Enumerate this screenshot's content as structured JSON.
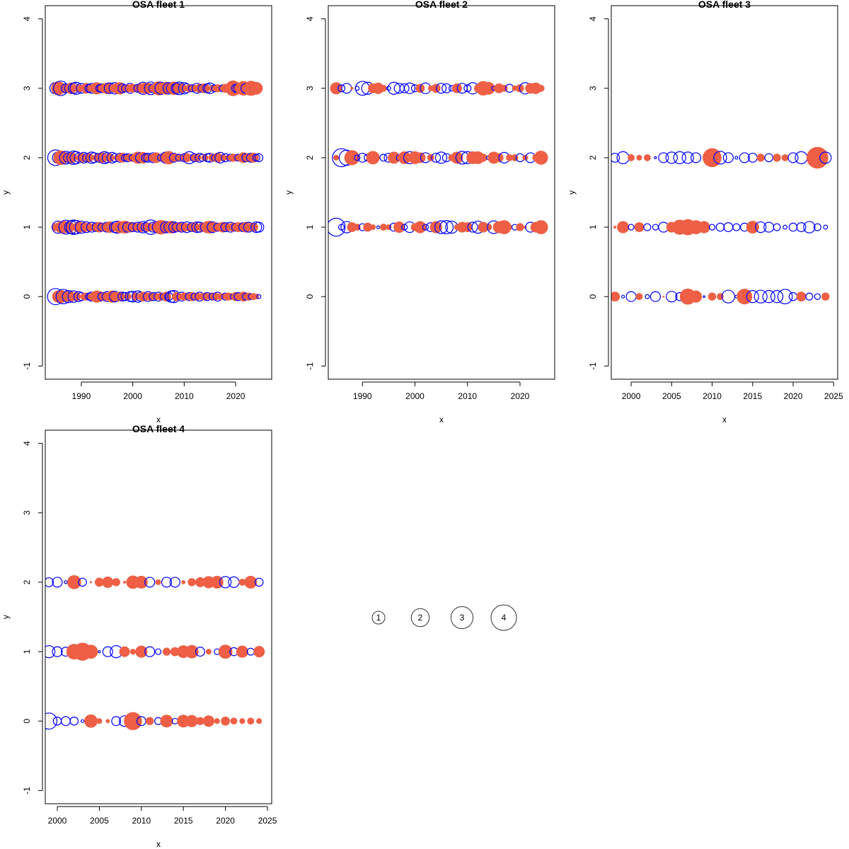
{
  "colors": {
    "positive": "#EE5F45",
    "negative": "#0000FF",
    "axis": "#000000",
    "legend": "#333333"
  },
  "chart_data": [
    {
      "type": "scatter",
      "subtype": "bubble",
      "title": "OSA fleet 1",
      "xlabel": "x",
      "ylabel": "y",
      "xlim": [
        1983,
        2027
      ],
      "ylim": [
        -1.19,
        4.19
      ],
      "xticks": [
        1990,
        2000,
        2010,
        2020
      ],
      "yticks": [
        -1,
        0,
        1,
        2,
        3,
        4
      ],
      "x": [
        1985,
        1985.5,
        1986,
        1986.5,
        1987,
        1987.5,
        1988,
        1988.5,
        1989,
        1989.5,
        1990,
        1990.5,
        1991,
        1991.5,
        1992,
        1992.5,
        1993,
        1993.5,
        1994,
        1994.5,
        1995,
        1995.5,
        1996,
        1996.5,
        1997,
        1997.5,
        1998,
        1998.5,
        1999,
        1999.5,
        2000,
        2000.5,
        2001,
        2001.5,
        2002,
        2002.5,
        2003,
        2003.5,
        2004,
        2004.5,
        2005,
        2005.5,
        2006,
        2006.5,
        2007,
        2007.5,
        2008,
        2008.5,
        2009,
        2009.5,
        2010,
        2010.5,
        2011,
        2011.5,
        2012,
        2012.5,
        2013,
        2013.5,
        2014,
        2014.5,
        2015,
        2015.5,
        2016,
        2016.5,
        2017,
        2017.5,
        2018,
        2018.5,
        2019,
        2019.5,
        2020,
        2020.5,
        2021,
        2021.5,
        2022,
        2022.5,
        2023,
        2023.5,
        2024,
        2024.5
      ],
      "rows": [
        {
          "y": 3,
          "residuals": [
            -0.8,
            1.2,
            -1.3,
            0.6,
            -0.5,
            -0.4,
            0.8,
            -0.7,
            -0.9,
            0.4,
            -0.6,
            0.3,
            0.7,
            -0.4,
            -0.6,
            0.5,
            0.9,
            -0.3,
            -0.5,
            0.6,
            0.8,
            -0.7,
            0.4,
            -0.8,
            0.7,
            0.9,
            -0.5,
            -0.3,
            0.4,
            -0.6,
            0.5,
            0.3,
            -0.4,
            0.6,
            -0.9,
            0.8,
            0.7,
            -1.0,
            -0.5,
            0.4,
            1.2,
            -0.9,
            0.8,
            1.0,
            -0.8,
            -0.6,
            1.1,
            -0.7,
            -1.0,
            0.6,
            -0.8,
            -0.5,
            0.4,
            -0.3,
            0.3,
            -0.6,
            0.5,
            -0.4,
            0.6,
            -0.5,
            -0.7,
            0.3,
            -0.3,
            0.4,
            0.2,
            -0.3,
            0.5,
            -0.2,
            0.8,
            1.5,
            -0.4,
            -0.5,
            0.9,
            1.3,
            -0.6,
            0.4,
            1.4,
            -0.3,
            1.0,
            0.4
          ]
        },
        {
          "y": 2,
          "residuals": [
            -1.5,
            -0.8,
            1.3,
            0.9,
            -1.0,
            -0.6,
            0.8,
            -1.1,
            -0.9,
            -0.5,
            0.6,
            -0.7,
            -0.4,
            0.5,
            -0.8,
            -0.6,
            0.4,
            -0.5,
            0.7,
            -0.9,
            -0.6,
            0.5,
            -0.7,
            -0.4,
            0.3,
            -0.5,
            0.6,
            -0.3,
            -0.4,
            0.4,
            -0.3,
            0.5,
            0.9,
            -0.6,
            0.8,
            -0.4,
            -0.5,
            0.3,
            -0.6,
            0.7,
            0.4,
            -0.3,
            0.5,
            -0.8,
            1.1,
            0.6,
            -0.5,
            0.4,
            -0.3,
            0.3,
            -0.4,
            0.5,
            -0.9,
            0.3,
            -0.4,
            0.4,
            -0.5,
            -0.3,
            0.3,
            -0.4,
            -0.5,
            0.4,
            -0.3,
            0.6,
            -0.7,
            0.3,
            -0.4,
            0.2,
            -0.3,
            0.4,
            0.3,
            -0.3,
            0.4,
            0.7,
            -0.4,
            0.5,
            -0.5,
            0.6,
            -0.3,
            -0.4
          ]
        },
        {
          "y": 1,
          "residuals": [
            0.4,
            -0.9,
            0.8,
            1.0,
            -1.2,
            0.9,
            -1.0,
            -1.3,
            -1.1,
            0.8,
            -0.9,
            0.6,
            -0.7,
            0.5,
            -0.6,
            0.4,
            -0.5,
            0.7,
            -0.4,
            0.5,
            -0.6,
            0.8,
            0.6,
            -0.7,
            -0.9,
            0.9,
            -0.5,
            1.0,
            -0.6,
            0.7,
            -0.5,
            0.4,
            -0.6,
            0.6,
            -0.8,
            -0.5,
            0.5,
            -1.3,
            -0.6,
            0.7,
            -0.9,
            1.3,
            0.9,
            -0.8,
            -0.6,
            1.0,
            -0.7,
            -0.5,
            0.6,
            -0.6,
            0.5,
            -0.7,
            0.4,
            -0.5,
            0.6,
            -0.7,
            -0.6,
            0.5,
            -0.5,
            0.9,
            1.0,
            -0.7,
            0.6,
            -0.4,
            0.5,
            0.7,
            -0.5,
            0.4,
            -0.6,
            0.5,
            -0.4,
            0.6,
            0.5,
            -0.5,
            0.7,
            -0.6,
            0.4,
            0.5,
            -0.7,
            -0.6
          ]
        },
        {
          "y": 0,
          "residuals": [
            -1.6,
            0.9,
            1.1,
            -1.3,
            0.7,
            -0.9,
            0.6,
            -0.8,
            0.5,
            -0.6,
            -0.4,
            0.3,
            0.4,
            -0.3,
            -0.5,
            0.6,
            0.9,
            0.7,
            -0.4,
            0.5,
            -0.6,
            0.5,
            0.9,
            -0.7,
            0.4,
            0.6,
            -0.5,
            -0.4,
            0.3,
            -0.6,
            -0.7,
            0.4,
            -0.8,
            -0.5,
            0.6,
            0.4,
            -0.6,
            0.5,
            -0.4,
            0.3,
            -0.5,
            0.4,
            -0.3,
            0.6,
            -0.4,
            -0.8,
            -0.9,
            0.5,
            0.3,
            -0.5,
            0.4,
            0.3,
            -0.4,
            0.5,
            -0.3,
            0.4,
            -0.5,
            0.3,
            0.4,
            -0.4,
            0.3,
            -0.3,
            0.4,
            -0.5,
            0.3,
            0.2,
            -0.3,
            0.4,
            0.3,
            -0.2,
            0.5,
            -0.4,
            0.3,
            0.6,
            -0.3,
            0.4,
            -0.2,
            0.3,
            0.2,
            -0.1
          ]
        }
      ]
    },
    {
      "type": "scatter",
      "subtype": "bubble",
      "title": "OSA fleet 2",
      "xlabel": "x",
      "ylabel": "y",
      "xlim": [
        1983.5,
        2026.6
      ],
      "ylim": [
        -1.19,
        4.19
      ],
      "xticks": [
        1990,
        2000,
        2010,
        2020
      ],
      "yticks": [
        -1,
        0,
        1,
        2,
        3,
        4
      ],
      "x": [
        1985,
        1986,
        1987,
        1988,
        1989,
        1990,
        1991,
        1992,
        1993,
        1994,
        1995,
        1996,
        1997,
        1998,
        1999,
        2000,
        2001,
        2002,
        2003,
        2004,
        2005,
        2006,
        2007,
        2008,
        2009,
        2010,
        2011,
        2012,
        2013,
        2014,
        2015,
        2016,
        2017,
        2018,
        2019,
        2020,
        2021,
        2022,
        2023,
        2024
      ],
      "rows": [
        {
          "y": 3,
          "residuals": [
            0.9,
            -0.3,
            -0.6,
            0.05,
            -0.1,
            -1.2,
            -0.9,
            0.6,
            0.8,
            0.3,
            -0.1,
            -0.9,
            -0.6,
            -0.5,
            -0.7,
            -0.3,
            0.5,
            -0.7,
            0.2,
            0.5,
            -0.6,
            -0.5,
            -0.2,
            0.6,
            -0.6,
            -0.3,
            -0.8,
            0.4,
            1.3,
            1.0,
            -0.1,
            0.6,
            0.3,
            -0.4,
            0.2,
            0.4,
            -0.8,
            0.7,
            0.8,
            0.3
          ]
        },
        {
          "y": 2,
          "residuals": [
            0.2,
            -2.0,
            -1.4,
            1.4,
            -0.2,
            -0.5,
            -0.3,
            1.1,
            0.05,
            -0.3,
            -0.5,
            0.9,
            -0.2,
            1.0,
            -0.9,
            1.0,
            0.7,
            -0.6,
            0.3,
            -0.5,
            -0.8,
            -0.4,
            0.3,
            0.9,
            -1.0,
            -0.9,
            1.0,
            1.0,
            0.4,
            -0.1,
            0.9,
            0.5,
            -0.7,
            0.3,
            0.3,
            -0.4,
            0.2,
            -0.6,
            0.3,
            1.2
          ]
        },
        {
          "y": 1,
          "residuals": [
            -2.0,
            -0.2,
            -0.8,
            0.6,
            0.3,
            -0.3,
            0.5,
            0.2,
            -0.05,
            0.3,
            0.2,
            -0.4,
            0.8,
            -0.2,
            -0.7,
            0.4,
            0.9,
            -0.2,
            -0.5,
            0.9,
            -1.0,
            -1.1,
            -0.9,
            0.2,
            0.7,
            0.6,
            -0.6,
            -0.9,
            0.7,
            0.3,
            -1.0,
            0.9,
            1.2,
            0.2,
            -0.2,
            0.4,
            0.05,
            -0.6,
            0.7,
            1.2
          ]
        }
      ]
    },
    {
      "type": "scatter",
      "subtype": "bubble",
      "title": "OSA fleet 3",
      "xlabel": "x",
      "ylabel": "y",
      "xlim": [
        1997.55,
        2025.5
      ],
      "ylim": [
        -1.19,
        4.19
      ],
      "xticks": [
        2000,
        2005,
        2010,
        2015,
        2020,
        2025
      ],
      "yticks": [
        -1,
        0,
        1,
        2,
        3,
        4
      ],
      "x": [
        1998,
        1999,
        2000,
        2001,
        2002,
        2003,
        2004,
        2005,
        2006,
        2007,
        2008,
        2009,
        2010,
        2011,
        2012,
        2013,
        2014,
        2015,
        2016,
        2017,
        2018,
        2019,
        2020,
        2021,
        2022,
        2023,
        2024
      ],
      "rows": [
        {
          "y": 2,
          "residuals": [
            -0.5,
            -0.9,
            0.3,
            0.2,
            0.3,
            -0.03,
            -0.6,
            -0.8,
            -0.9,
            -0.8,
            -0.6,
            -0.02,
            2.2,
            -1.0,
            -0.6,
            -0.05,
            -0.6,
            -0.5,
            0.4,
            -0.4,
            0.4,
            0.3,
            -0.6,
            -0.9,
            0.05,
            2.9,
            -0.8
          ]
        },
        {
          "y": 1,
          "residuals": [
            0.05,
            0.9,
            -0.2,
            0.6,
            -0.3,
            -0.2,
            -0.6,
            0.7,
            1.4,
            1.6,
            1.2,
            0.9,
            -0.2,
            -0.4,
            -0.5,
            -0.3,
            -0.4,
            1.0,
            -0.7,
            -0.6,
            -0.3,
            -0.1,
            -0.4,
            -0.5,
            -0.8,
            -0.3,
            -0.1
          ]
        },
        {
          "y": 0,
          "residuals": [
            0.6,
            -0.05,
            -0.6,
            0.3,
            -0.1,
            -0.6,
            0.02,
            -0.7,
            -0.4,
            1.6,
            0.9,
            -0.02,
            0.4,
            0.3,
            -1.0,
            -0.05,
            1.5,
            -0.9,
            -1.0,
            -0.9,
            -0.9,
            -1.3,
            -0.4,
            0.6,
            -0.3,
            -0.2,
            0.4
          ]
        }
      ]
    },
    {
      "type": "scatter",
      "subtype": "bubble",
      "title": "OSA fleet 4",
      "xlabel": "x",
      "ylabel": "y",
      "xlim": [
        1998.57,
        2025.5
      ],
      "ylim": [
        -1.19,
        4.19
      ],
      "xticks": [
        2000,
        2005,
        2010,
        2015,
        2020,
        2025
      ],
      "yticks": [
        -1,
        0,
        1,
        2,
        3,
        4
      ],
      "x": [
        1999,
        2000,
        2001,
        2002,
        2003,
        2004,
        2005,
        2006,
        2007,
        2008,
        2009,
        2010,
        2011,
        2012,
        2013,
        2014,
        2015,
        2016,
        2017,
        2018,
        2019,
        2020,
        2021,
        2022,
        2023,
        2024
      ],
      "rows": [
        {
          "y": 2,
          "residuals": [
            -0.5,
            -0.6,
            -0.05,
            1.2,
            -0.4,
            0.03,
            0.5,
            0.8,
            0.4,
            0.05,
            1.1,
            1.0,
            -0.6,
            0.2,
            -0.6,
            -0.6,
            0.1,
            0.4,
            0.6,
            0.9,
            1.0,
            -0.8,
            -0.7,
            0.3,
            1.0,
            -0.4
          ]
        },
        {
          "y": 1,
          "residuals": [
            -0.9,
            -0.6,
            -0.5,
            1.5,
            2.0,
            1.2,
            -0.03,
            -0.6,
            -0.9,
            0.7,
            0.2,
            0.9,
            -0.6,
            -0.2,
            0.4,
            0.5,
            1.0,
            1.1,
            -0.5,
            0.2,
            -0.2,
            1.2,
            -0.4,
            0.9,
            -0.3,
            0.8
          ]
        },
        {
          "y": 0,
          "residuals": [
            -1.6,
            -0.4,
            -0.5,
            -0.4,
            -0.05,
            1.1,
            0.2,
            0.1,
            -0.5,
            -0.7,
            2.0,
            -0.5,
            0.4,
            -0.3,
            1.0,
            -0.2,
            1.0,
            0.9,
            0.4,
            0.8,
            0.2,
            0.5,
            0.3,
            0.2,
            0.3,
            0.2
          ]
        }
      ]
    }
  ],
  "legend": {
    "sizes": [
      1,
      2,
      3,
      4
    ],
    "labels": [
      "1",
      "2",
      "3",
      "4"
    ]
  }
}
